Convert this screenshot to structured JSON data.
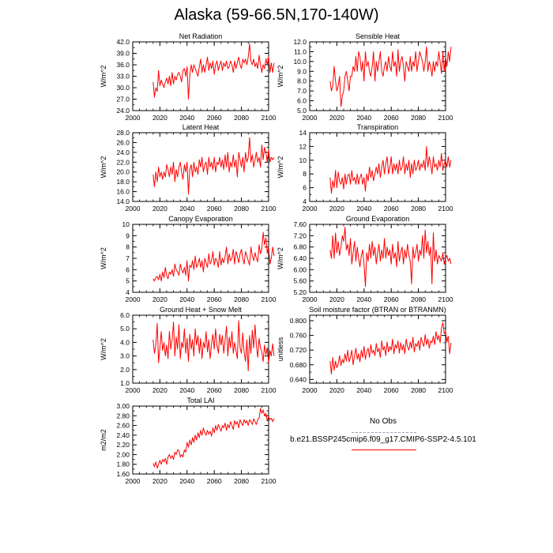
{
  "page_title": "Alaska (59-66.5N,170-140W)",
  "legend": {
    "obs_label": "No Obs",
    "model_label": "b.e21.BSSP245cmip6.f09_g17.CMIP6-SSP2-4.5.101",
    "obs_color": "#9b9bb4",
    "model_color": "#ff0000"
  },
  "chart_data": [
    {
      "type": "line",
      "title": "Net Radiation",
      "ylabel": "W/m^2",
      "xlim": [
        2000,
        2100
      ],
      "xticks": [
        "2000",
        "2020",
        "2040",
        "2060",
        "2080",
        "2100"
      ],
      "ylim": [
        24,
        42
      ],
      "yticks": [
        "24.0",
        "27.0",
        "30.0",
        "33.0",
        "36.0",
        "39.0",
        "42.0"
      ],
      "x_start": 2015,
      "series": [
        {
          "name": "b.e21.BSSP245cmip6.f09_g17.CMIP6-SSP2-4.5.101",
          "color": "#ff0000",
          "values": [
            31.5,
            27.5,
            30,
            29,
            34.5,
            30.5,
            32,
            31,
            30,
            31.5,
            32.5,
            31,
            33,
            30.5,
            34,
            31,
            33,
            32,
            33.5,
            34,
            33,
            31.5,
            34.5,
            35,
            33,
            35.5,
            27,
            33,
            36,
            34,
            36,
            35,
            34,
            33,
            35.5,
            37.5,
            34,
            36,
            34,
            36,
            38,
            34.5,
            36.5,
            35,
            37,
            33.5,
            36,
            37,
            34.5,
            36,
            37,
            34.5,
            36.5,
            35.5,
            37,
            35,
            35.5,
            37,
            36,
            34,
            37,
            35,
            36.5,
            38,
            36,
            35,
            37.5,
            36.5,
            37.5,
            36,
            38,
            41.5,
            37,
            36,
            37.5,
            35.5,
            36.5,
            35,
            38.5,
            36,
            34,
            36,
            35,
            37.5,
            36,
            38,
            34,
            36.5,
            34,
            36.5
          ]
        }
      ]
    },
    {
      "type": "line",
      "title": "Sensible Heat",
      "ylabel": "W/m^2",
      "xlim": [
        2000,
        2100
      ],
      "xticks": [
        "2000",
        "2020",
        "2040",
        "2060",
        "2080",
        "2100"
      ],
      "ylim": [
        5,
        12
      ],
      "yticks": [
        "5.0",
        "6.0",
        "7.0",
        "8.0",
        "9.0",
        "10.0",
        "11.0",
        "12.0"
      ],
      "x_start": 2015,
      "series": [
        {
          "name": "b.e21.BSSP245cmip6.f09_g17.CMIP6-SSP2-4.5.101",
          "color": "#ff0000",
          "values": [
            8,
            7,
            7.5,
            9.5,
            8,
            7,
            7.5,
            8.5,
            5.4,
            6.5,
            7,
            8.5,
            9,
            8,
            7,
            8.5,
            8.5,
            9.5,
            9,
            10.5,
            9,
            11,
            10.5,
            9,
            10,
            8,
            11,
            9.5,
            10,
            9,
            8.5,
            9.5,
            11,
            8,
            10,
            9,
            10,
            11,
            9,
            8.5,
            9.5,
            10,
            9,
            10.5,
            9.5,
            9,
            11,
            9.5,
            10,
            8.5,
            11.2,
            9,
            10,
            10.5,
            9.5,
            8,
            10,
            9.5,
            9,
            10.5,
            9,
            10,
            9.5,
            11,
            9,
            10,
            11,
            10.5,
            10,
            9,
            10,
            11.5,
            9,
            10,
            9.5,
            8.5,
            10,
            9,
            10,
            9.5,
            11,
            10,
            8.8,
            11,
            9,
            10.5,
            9.5,
            11,
            10,
            11.5
          ]
        }
      ]
    },
    {
      "type": "line",
      "title": "Latent Heat",
      "ylabel": "W/m^2",
      "xlim": [
        2000,
        2100
      ],
      "xticks": [
        "2000",
        "2020",
        "2040",
        "2060",
        "2080",
        "2100"
      ],
      "ylim": [
        14,
        28
      ],
      "yticks": [
        "14.0",
        "16.0",
        "18.0",
        "20.0",
        "22.0",
        "24.0",
        "26.0",
        "28.0"
      ],
      "x_start": 2015,
      "series": [
        {
          "name": "b.e21.BSSP245cmip6.f09_g17.CMIP6-SSP2-4.5.101",
          "color": "#ff0000",
          "values": [
            19.5,
            17,
            20,
            18,
            21,
            19,
            20,
            18.5,
            20,
            19,
            21.5,
            20.5,
            19,
            21,
            19.5,
            22,
            18,
            20.5,
            19,
            21,
            22,
            20,
            18.5,
            21.5,
            20,
            22,
            15.5,
            20.5,
            21.5,
            19,
            22,
            20,
            21,
            19.5,
            22.5,
            21,
            23,
            20,
            21.5,
            22,
            19.5,
            23,
            21,
            22,
            20.5,
            23,
            20,
            22,
            21.5,
            23,
            21,
            22.5,
            20.5,
            23.5,
            21,
            24,
            20,
            22,
            21,
            23.5,
            21,
            22.5,
            19,
            24,
            22.5,
            21,
            23,
            20,
            24,
            22,
            23,
            27,
            22,
            23.5,
            21,
            22.5,
            24,
            22,
            23,
            21,
            25.5,
            22.5,
            25,
            24,
            22,
            24.5,
            22,
            23,
            22.5,
            23
          ]
        }
      ]
    },
    {
      "type": "line",
      "title": "Transpiration",
      "ylabel": "W/m^2",
      "xlim": [
        2000,
        2100
      ],
      "xticks": [
        "2000",
        "2020",
        "2040",
        "2060",
        "2080",
        "2100"
      ],
      "ylim": [
        4,
        14
      ],
      "yticks": [
        "4",
        "6",
        "8",
        "10",
        "12",
        "14"
      ],
      "x_start": 2015,
      "series": [
        {
          "name": "b.e21.BSSP245cmip6.f09_g17.CMIP6-SSP2-4.5.101",
          "color": "#ff0000",
          "values": [
            7.5,
            5.2,
            7,
            6,
            8.5,
            6,
            8.3,
            7,
            6.5,
            7.5,
            5.8,
            8,
            6.5,
            7.8,
            8,
            6.5,
            8.5,
            7,
            7.5,
            6.5,
            8,
            6.5,
            7.5,
            8,
            6.5,
            7.5,
            5.5,
            8,
            7,
            9,
            7.5,
            8.5,
            7,
            8,
            9,
            8,
            9.5,
            7.5,
            9,
            10,
            8,
            9.5,
            10.5,
            8,
            9,
            10.5,
            8,
            9.5,
            8.5,
            9.5,
            8,
            10,
            8.5,
            9,
            10.5,
            8,
            9.5,
            8.5,
            10,
            7.5,
            9.5,
            8,
            10,
            8.5,
            9,
            10,
            8.5,
            9.5,
            9,
            10,
            8.5,
            12,
            9,
            10.5,
            9.5,
            8,
            10.5,
            9,
            9.5,
            8.5,
            10,
            9,
            11,
            8.5,
            9.5,
            10,
            9,
            10.5,
            9,
            10
          ]
        }
      ]
    },
    {
      "type": "line",
      "title": "Canopy Evaporation",
      "ylabel": "W/m^2",
      "xlim": [
        2000,
        2100
      ],
      "xticks": [
        "2000",
        "2020",
        "2040",
        "2060",
        "2080",
        "2100"
      ],
      "ylim": [
        4,
        10
      ],
      "yticks": [
        "4",
        "5",
        "6",
        "7",
        "8",
        "9",
        "10"
      ],
      "x_start": 2015,
      "series": [
        {
          "name": "b.e21.BSSP245cmip6.f09_g17.CMIP6-SSP2-4.5.101",
          "color": "#ff0000",
          "values": [
            5.2,
            5,
            5.3,
            5.4,
            5.1,
            5.6,
            5,
            5.8,
            5.3,
            6.2,
            5.5,
            5.2,
            5.8,
            5.6,
            6,
            5.4,
            6.5,
            6,
            5.8,
            5.5,
            6.5,
            6,
            5.7,
            6.2,
            5.5,
            6.8,
            5,
            6.4,
            6.2,
            6.8,
            6,
            7.2,
            6.2,
            6.5,
            7,
            6.2,
            6.8,
            5.8,
            7,
            6.6,
            6.2,
            7.4,
            6.5,
            6.8,
            7.6,
            6.4,
            7,
            6.8,
            6.2,
            7.6,
            6.4,
            7,
            6.6,
            7.2,
            8,
            6.5,
            7.4,
            6.8,
            7,
            7.8,
            6.5,
            7.6,
            7.2,
            6.6,
            7.4,
            7.8,
            7,
            6.5,
            7.6,
            7.2,
            6.8,
            6.4,
            8,
            7.2,
            6.8,
            7.5,
            7,
            6.7,
            8.2,
            7.4,
            7.8,
            9.3,
            8.2,
            8.8,
            7.5,
            8,
            6.5,
            7,
            8,
            7.2
          ]
        }
      ]
    },
    {
      "type": "line",
      "title": "Ground Evaporation",
      "ylabel": "W/m^2",
      "xlim": [
        2000,
        2100
      ],
      "xticks": [
        "2000",
        "2020",
        "2040",
        "2060",
        "2080",
        "2100"
      ],
      "ylim": [
        5.2,
        7.6
      ],
      "yticks": [
        "5.20",
        "5.60",
        "6.00",
        "6.40",
        "6.80",
        "7.20",
        "7.60"
      ],
      "x_start": 2015,
      "series": [
        {
          "name": "b.e21.BSSP245cmip6.f09_g17.CMIP6-SSP2-4.5.101",
          "color": "#ff0000",
          "values": [
            6.7,
            6.4,
            7.2,
            6.4,
            7.3,
            6.6,
            7,
            6.5,
            6.8,
            7.2,
            7,
            7.5,
            6.7,
            6.9,
            6.5,
            7.1,
            6.2,
            6.6,
            7,
            6.3,
            6.8,
            6.4,
            6.1,
            6.5,
            6.7,
            6.2,
            5.4,
            6.6,
            6.3,
            6.9,
            6.4,
            7,
            6.5,
            6.8,
            6.2,
            6.6,
            6.9,
            6.3,
            6.7,
            6.4,
            7.1,
            6.4,
            6.8,
            6.5,
            6.7,
            6.2,
            6.9,
            6.4,
            6.6,
            6.1,
            7,
            6.3,
            6.6,
            6.8,
            6.2,
            6.7,
            6.4,
            6.9,
            6.5,
            6.3,
            5.5,
            6.8,
            6.4,
            6.6,
            6.9,
            6.3,
            6.7,
            6.5,
            7.2,
            6.4,
            7.4,
            6.6,
            7,
            6.5,
            6.8,
            5.5,
            7.3,
            6.3,
            6.7,
            6.2,
            6.5,
            6.4,
            6.3,
            6.6,
            6.2,
            6.4,
            6.5,
            6.3,
            6.4,
            6.2
          ]
        }
      ]
    },
    {
      "type": "line",
      "title": "Ground Heat + Snow Melt",
      "ylabel": "W/m^2",
      "xlim": [
        2000,
        2100
      ],
      "xticks": [
        "2000",
        "2020",
        "2040",
        "2060",
        "2080",
        "2100"
      ],
      "ylim": [
        1,
        6
      ],
      "yticks": [
        "1.0",
        "2.0",
        "3.0",
        "4.0",
        "5.0",
        "6.0"
      ],
      "x_start": 2015,
      "series": [
        {
          "name": "b.e21.BSSP245cmip6.f09_g17.CMIP6-SSP2-4.5.101",
          "color": "#ff0000",
          "values": [
            4.2,
            3.2,
            3.8,
            5.4,
            2.5,
            3.6,
            4.8,
            3.4,
            4,
            3,
            3.8,
            2.8,
            4.8,
            3.5,
            4.2,
            5.5,
            3,
            4.4,
            3.5,
            5.3,
            2.8,
            4,
            3.6,
            5,
            3.2,
            4.3,
            2.6,
            4.6,
            3.5,
            4.2,
            3,
            5,
            3.8,
            4.5,
            3.2,
            4.3,
            2.8,
            4,
            3.6,
            4.8,
            3.3,
            4.2,
            2.8,
            3.9,
            4.6,
            3.5,
            5,
            3.8,
            3.2,
            4.6,
            3.8,
            4.5,
            3.2,
            4.2,
            5.2,
            3,
            4.4,
            3.6,
            4.8,
            3.2,
            4,
            3.4,
            2.8,
            5.6,
            3.6,
            3.2,
            4.7,
            3.3,
            2.6,
            4.2,
            1.9,
            4.5,
            3.2,
            4.9,
            3.6,
            5.3,
            3.8,
            2.9,
            4.3,
            3.6,
            3.3,
            2.6,
            3.8,
            3.1,
            3.6,
            2.5,
            3.4,
            3,
            3.9,
            3
          ]
        }
      ]
    },
    {
      "type": "line",
      "title": "Soil moisture factor (BTRAN or BTRANMN)",
      "ylabel": "unitless",
      "xlim": [
        2000,
        2100
      ],
      "xticks": [
        "2000",
        "2020",
        "2040",
        "2060",
        "2080",
        "2100"
      ],
      "ylim": [
        0.63,
        0.815
      ],
      "yticks": [
        "0.640",
        "0.680",
        "0.720",
        "0.760",
        "0.800"
      ],
      "x_start": 2015,
      "series": [
        {
          "name": "b.e21.BSSP245cmip6.f09_g17.CMIP6-SSP2-4.5.101",
          "color": "#ff0000",
          "values": [
            0.69,
            0.655,
            0.7,
            0.665,
            0.69,
            0.672,
            0.682,
            0.705,
            0.678,
            0.695,
            0.685,
            0.71,
            0.69,
            0.72,
            0.688,
            0.7,
            0.72,
            0.68,
            0.705,
            0.725,
            0.695,
            0.71,
            0.688,
            0.72,
            0.7,
            0.73,
            0.695,
            0.715,
            0.725,
            0.7,
            0.735,
            0.712,
            0.72,
            0.705,
            0.738,
            0.715,
            0.725,
            0.7,
            0.745,
            0.72,
            0.73,
            0.705,
            0.742,
            0.715,
            0.73,
            0.72,
            0.75,
            0.71,
            0.735,
            0.725,
            0.745,
            0.712,
            0.74,
            0.72,
            0.735,
            0.71,
            0.75,
            0.73,
            0.72,
            0.742,
            0.725,
            0.755,
            0.715,
            0.738,
            0.73,
            0.745,
            0.72,
            0.755,
            0.74,
            0.73,
            0.762,
            0.735,
            0.75,
            0.725,
            0.745,
            0.74,
            0.758,
            0.735,
            0.77,
            0.748,
            0.76,
            0.74,
            0.78,
            0.795,
            0.765,
            0.77,
            0.742,
            0.758,
            0.71,
            0.74
          ]
        }
      ]
    },
    {
      "type": "line",
      "title": "Total LAI",
      "ylabel": "m2/m2",
      "xlim": [
        2000,
        2100
      ],
      "xticks": [
        "2000",
        "2020",
        "2040",
        "2060",
        "2080",
        "2100"
      ],
      "ylim": [
        1.6,
        3.0
      ],
      "yticks": [
        "1.60",
        "1.80",
        "2.00",
        "2.20",
        "2.40",
        "2.60",
        "2.80",
        "3.00"
      ],
      "x_start": 2015,
      "series": [
        {
          "name": "b.e21.BSSP245cmip6.f09_g17.CMIP6-SSP2-4.5.101",
          "color": "#ff0000",
          "values": [
            1.82,
            1.75,
            1.85,
            1.72,
            1.8,
            1.88,
            1.8,
            1.9,
            1.85,
            1.92,
            1.8,
            1.95,
            2.0,
            1.92,
            1.98,
            1.9,
            2.05,
            2.0,
            2.1,
            2.08,
            1.95,
            2.0,
            1.95,
            2.1,
            2.05,
            2.25,
            2.15,
            2.3,
            2.2,
            2.35,
            2.25,
            2.4,
            2.3,
            2.45,
            2.35,
            2.5,
            2.4,
            2.55,
            2.45,
            2.4,
            2.5,
            2.42,
            2.48,
            2.38,
            2.55,
            2.45,
            2.6,
            2.5,
            2.62,
            2.55,
            2.48,
            2.6,
            2.55,
            2.65,
            2.5,
            2.62,
            2.55,
            2.68,
            2.6,
            2.52,
            2.7,
            2.62,
            2.68,
            2.55,
            2.72,
            2.65,
            2.6,
            2.72,
            2.65,
            2.7,
            2.6,
            2.72,
            2.68,
            2.62,
            2.74,
            2.68,
            2.62,
            2.72,
            2.75,
            2.95,
            2.85,
            2.92,
            2.8,
            2.85,
            2.7,
            2.78,
            2.72,
            2.75,
            2.68,
            2.75
          ]
        }
      ]
    }
  ]
}
